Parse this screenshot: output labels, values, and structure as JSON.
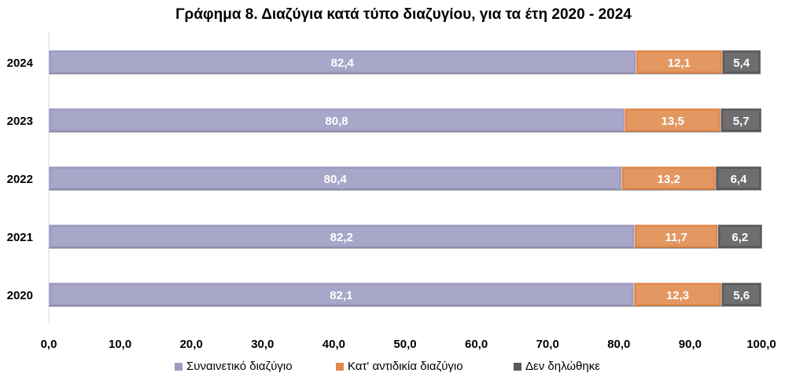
{
  "chart_data": {
    "type": "bar",
    "orientation": "horizontal",
    "stacked": true,
    "title": "Γράφημα 8. Διαζύγια κατά τύπο διαζυγίου, για τα έτη 2020 - 2024",
    "categories": [
      "2024",
      "2023",
      "2022",
      "2021",
      "2020"
    ],
    "series": [
      {
        "name": "Συναινετικό διαζύγιο",
        "color": "#9d9bc2",
        "values": [
          82.4,
          80.8,
          80.4,
          82.2,
          82.1
        ],
        "labels": [
          "82,4",
          "80,8",
          "80,4",
          "82,2",
          "82,1"
        ]
      },
      {
        "name": "Κατ' αντιδικία διαζύγιο",
        "color": "#e0894c",
        "values": [
          12.1,
          13.5,
          13.2,
          11.7,
          12.3
        ],
        "labels": [
          "12,1",
          "13,5",
          "13,2",
          "11,7",
          "12,3"
        ]
      },
      {
        "name": "Δεν δηλώθηκε",
        "color": "#5a5a5a",
        "values": [
          5.4,
          5.7,
          6.4,
          6.2,
          5.6
        ],
        "labels": [
          "5,4",
          "5,7",
          "6,4",
          "6,2",
          "5,6"
        ]
      }
    ],
    "xlim": [
      0,
      100
    ],
    "xticks": [
      "0,0",
      "10,0",
      "20,0",
      "30,0",
      "40,0",
      "50,0",
      "60,0",
      "70,0",
      "80,0",
      "90,0",
      "100,0"
    ],
    "xlabel": "",
    "ylabel": "",
    "grid": false,
    "legend": "bottom"
  }
}
